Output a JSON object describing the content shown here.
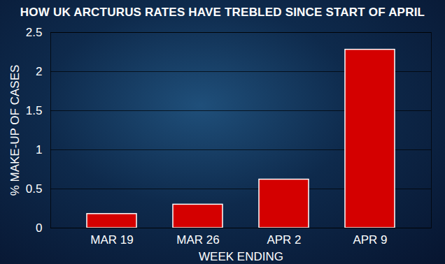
{
  "chart_data": {
    "type": "bar",
    "title": "HOW UK ARCTURUS RATES HAVE TREBLED SINCE START OF APRIL",
    "xlabel": "WEEK ENDING",
    "ylabel": "% MAKE-UP OF CASES",
    "categories": [
      "MAR 19",
      "MAR 26",
      "APR 2",
      "APR 9"
    ],
    "values": [
      0.18,
      0.3,
      0.62,
      2.28
    ],
    "color": "#d40000",
    "ylim": [
      0,
      2.5
    ],
    "yticks": [
      0,
      0.5,
      1,
      1.5,
      2,
      2.5
    ],
    "grid": true
  }
}
